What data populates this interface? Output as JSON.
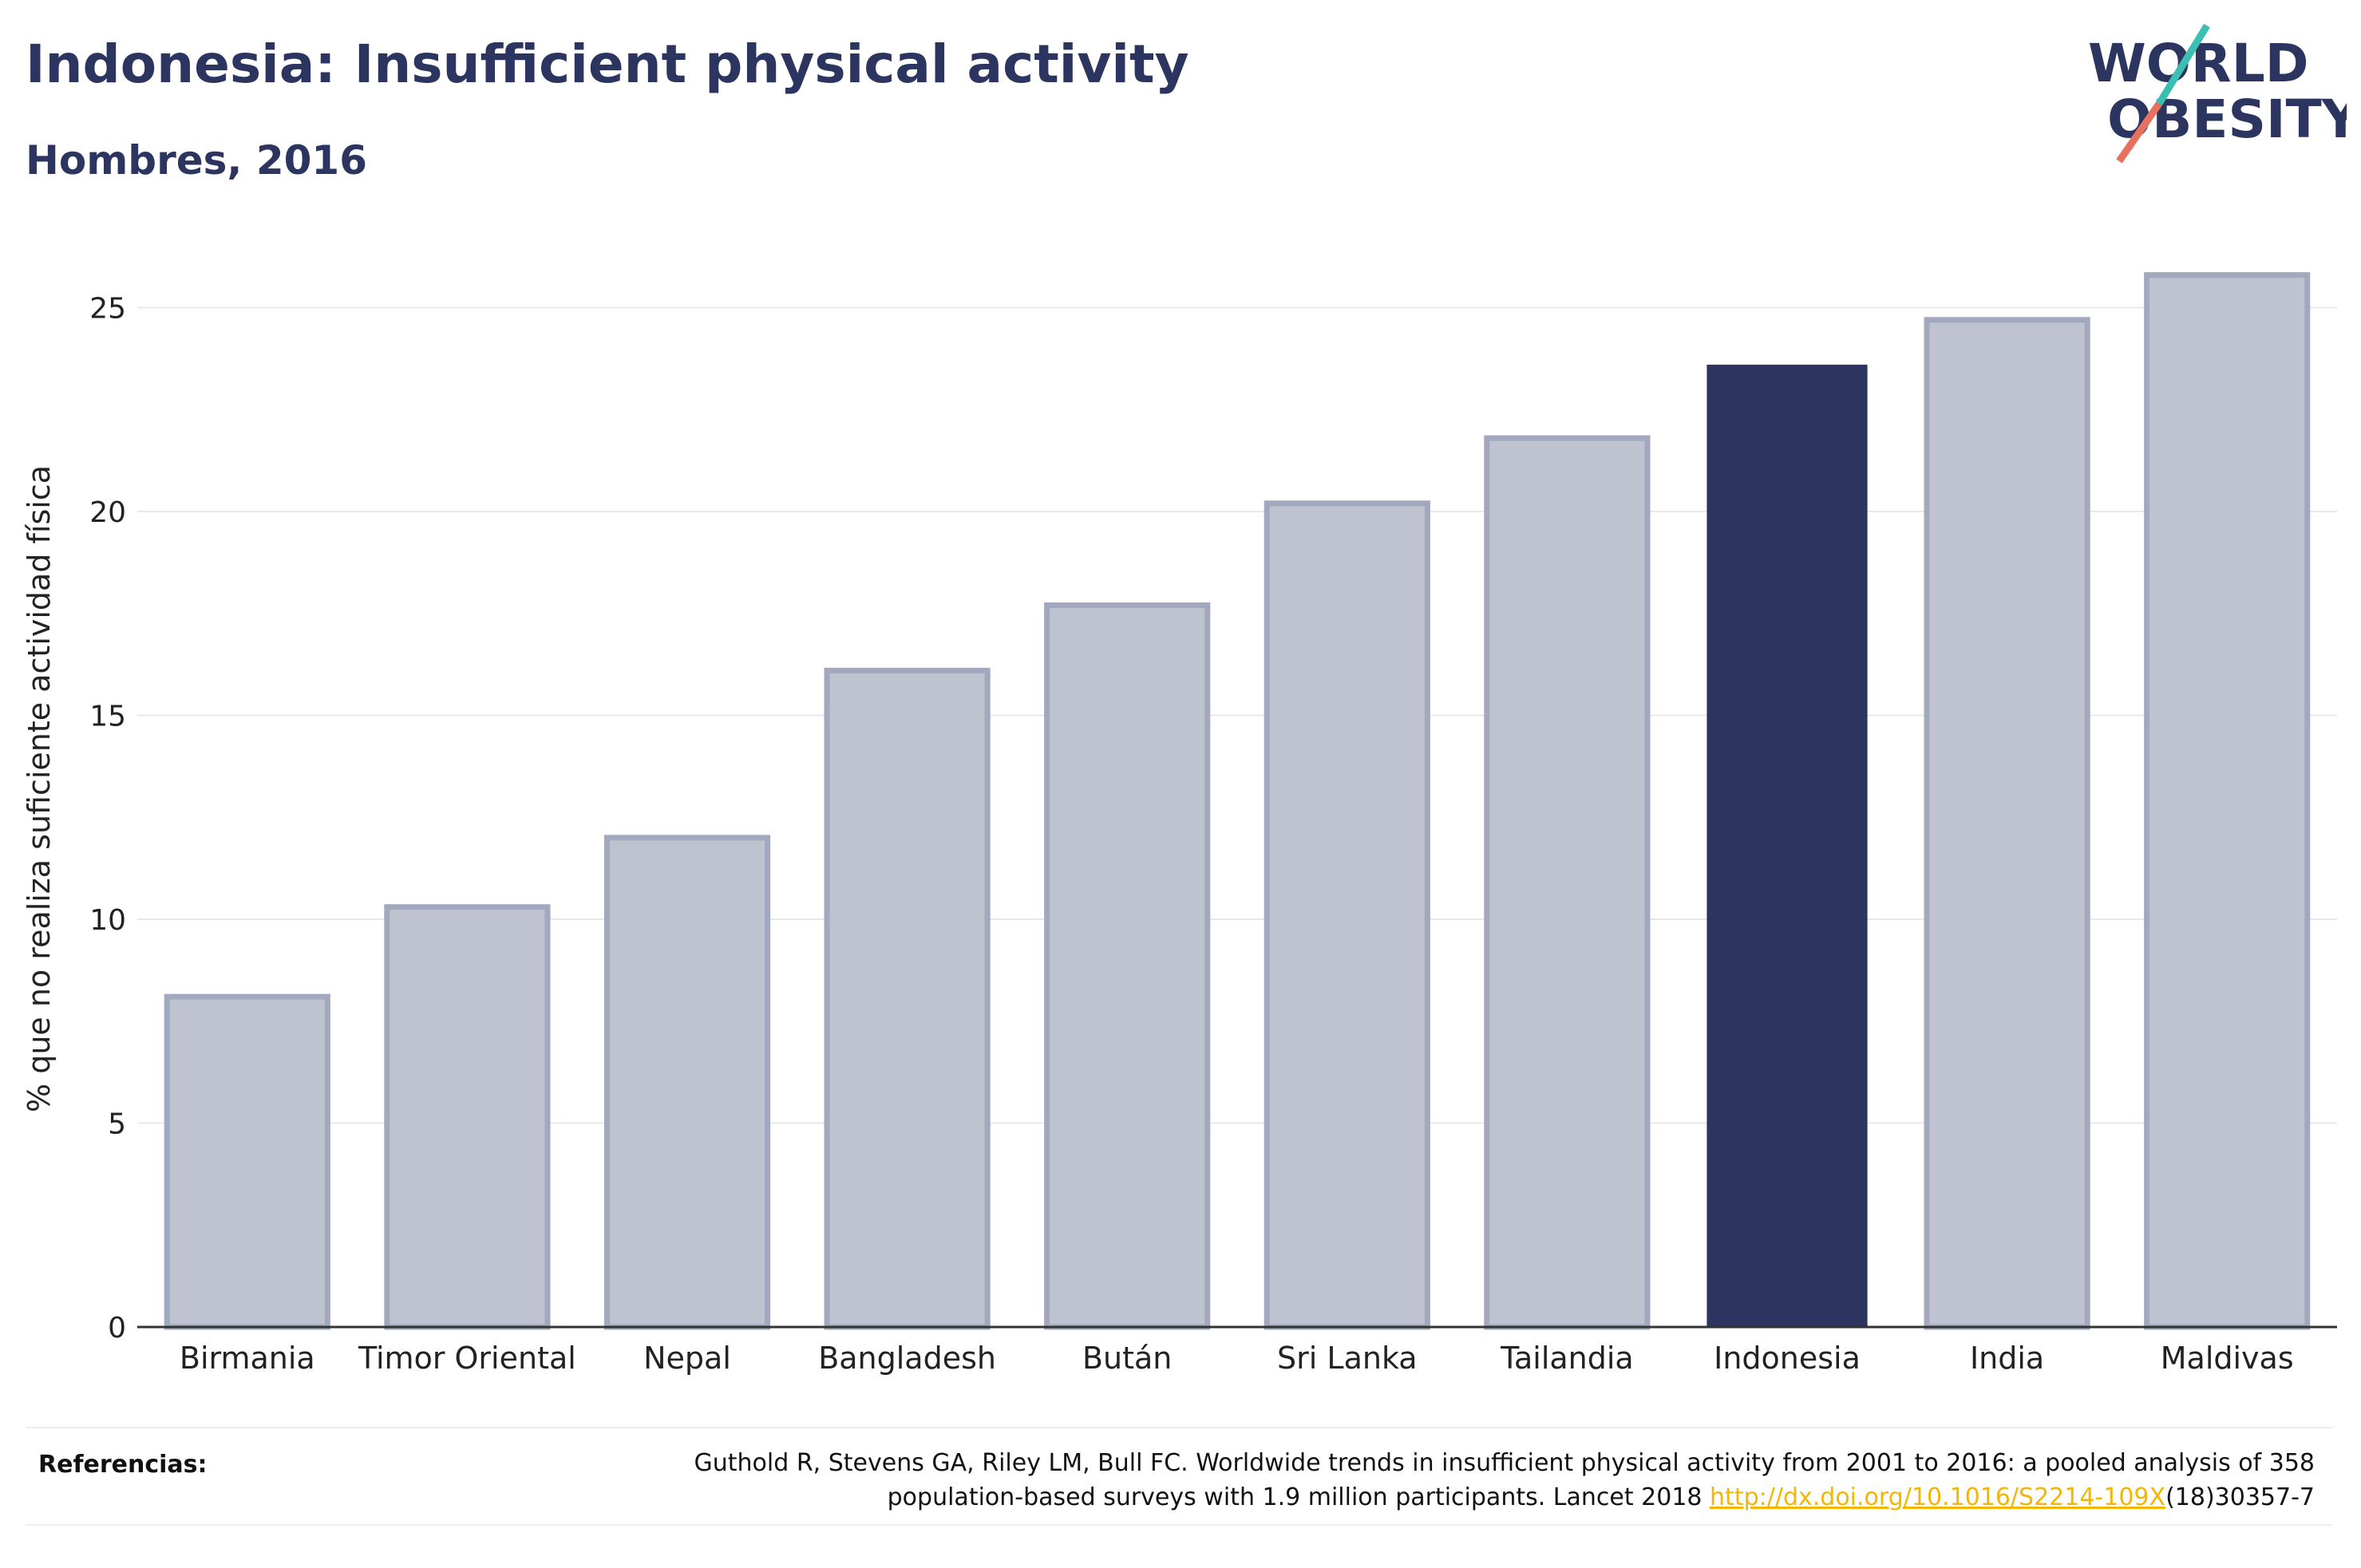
{
  "header": {
    "title": "Indonesia: Insufficient physical activity",
    "subtitle": "Hombres, 2016"
  },
  "logo": {
    "line1": "WORLD",
    "line2": "OBESITY",
    "accent_colors": [
      "#3bbfb3",
      "#e8705e"
    ]
  },
  "colors": {
    "highlight": "#2b3560",
    "bar_fill": "#bfc2cf",
    "bar_stroke": "#a2a8bd",
    "grid": "#e8e8e8",
    "axis": "#333333"
  },
  "chart_data": {
    "type": "bar",
    "title": "",
    "xlabel": "",
    "ylabel": "% que no realiza suficiente actividad física",
    "categories": [
      "Birmania",
      "Timor Oriental",
      "Nepal",
      "Bangladesh",
      "Bután",
      "Sri Lanka",
      "Tailandia",
      "Indonesia",
      "India",
      "Maldivas"
    ],
    "values": [
      8.1,
      10.3,
      12.0,
      16.1,
      17.7,
      20.2,
      21.8,
      23.6,
      24.7,
      25.8
    ],
    "highlight": "Indonesia",
    "ylim": [
      0,
      26.5
    ],
    "yticks": [
      0,
      5,
      10,
      15,
      20,
      25
    ],
    "grid": true,
    "legend": "none"
  },
  "references": {
    "label": "Referencias:",
    "text_part1": "Guthold R, Stevens GA, Riley LM, Bull FC. Worldwide trends in insufficient physical activity from 2001 to 2016: a pooled analysis of 358 population-based surveys with 1.9 million participants. Lancet 2018 ",
    "link": "http://dx.doi.org/10.1016/S2214-109X",
    "text_part2": "(18)30357-7"
  }
}
